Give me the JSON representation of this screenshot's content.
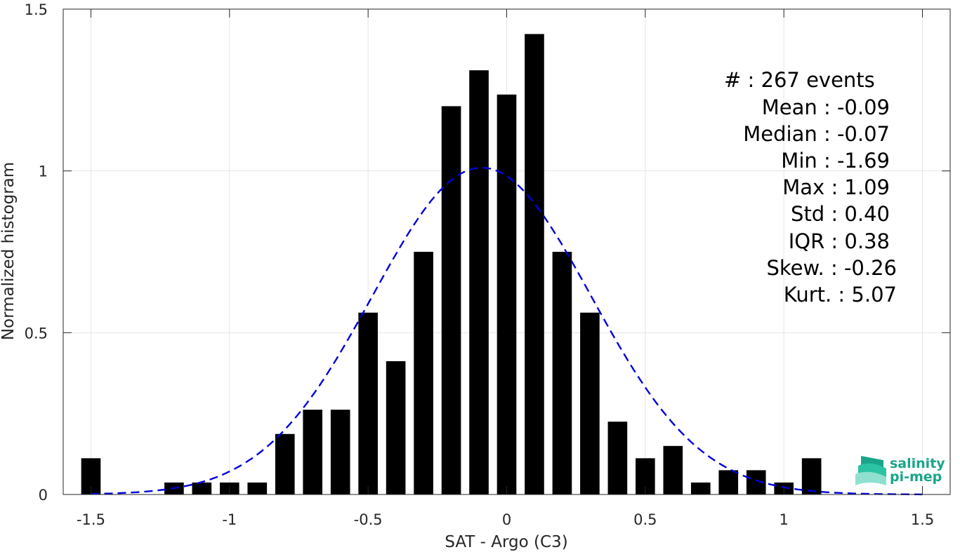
{
  "chart_data": {
    "type": "bar",
    "xlabel": "SAT - Argo (C3)",
    "ylabel": "Normalized histogram",
    "xlim": [
      -1.6,
      1.6
    ],
    "ylim": [
      0,
      1.5
    ],
    "xticks": [
      -1.5,
      -1,
      -0.5,
      0,
      0.5,
      1,
      1.5
    ],
    "xtick_labels": [
      "-1.5",
      "-1",
      "-0.5",
      "0",
      "0.5",
      "1",
      "1.5"
    ],
    "yticks": [
      0,
      0.5,
      1,
      1.5
    ],
    "ytick_labels": [
      "0",
      "0.5",
      "1",
      "1.5"
    ],
    "grid": true,
    "bar_width": 0.07,
    "bar_color": "#000000",
    "bars": [
      {
        "x": -1.5,
        "y": 0.112
      },
      {
        "x": -1.2,
        "y": 0.037
      },
      {
        "x": -1.1,
        "y": 0.037
      },
      {
        "x": -1.0,
        "y": 0.037
      },
      {
        "x": -0.9,
        "y": 0.037
      },
      {
        "x": -0.8,
        "y": 0.187
      },
      {
        "x": -0.7,
        "y": 0.262
      },
      {
        "x": -0.6,
        "y": 0.262
      },
      {
        "x": -0.5,
        "y": 0.562
      },
      {
        "x": -0.4,
        "y": 0.412
      },
      {
        "x": -0.3,
        "y": 0.75
      },
      {
        "x": -0.2,
        "y": 1.2
      },
      {
        "x": -0.1,
        "y": 1.311
      },
      {
        "x": 0.0,
        "y": 1.236
      },
      {
        "x": 0.1,
        "y": 1.423
      },
      {
        "x": 0.2,
        "y": 0.75
      },
      {
        "x": 0.3,
        "y": 0.562
      },
      {
        "x": 0.4,
        "y": 0.225
      },
      {
        "x": 0.5,
        "y": 0.112
      },
      {
        "x": 0.6,
        "y": 0.15
      },
      {
        "x": 0.7,
        "y": 0.037
      },
      {
        "x": 0.8,
        "y": 0.075
      },
      {
        "x": 0.9,
        "y": 0.075
      },
      {
        "x": 1.0,
        "y": 0.037
      },
      {
        "x": 1.1,
        "y": 0.112
      }
    ],
    "fit_curve": {
      "style": "dashed",
      "color": "#0000dd",
      "mean": -0.09,
      "std": 0.395,
      "x_range": [
        -1.5,
        1.5
      ]
    },
    "stats": [
      "#  : 267 events",
      "Mean : -0.09",
      "Median : -0.07",
      "Min : -1.69",
      "Max : 1.09",
      "Std : 0.40",
      "IQR : 0.38",
      "Skew. : -0.26",
      "Kurt. : 5.07"
    ]
  },
  "logo": {
    "line1": "salinity",
    "line2": "pi-mep",
    "colors": [
      "#1aa58a",
      "#2bc3a4",
      "#8fe0cf"
    ]
  }
}
